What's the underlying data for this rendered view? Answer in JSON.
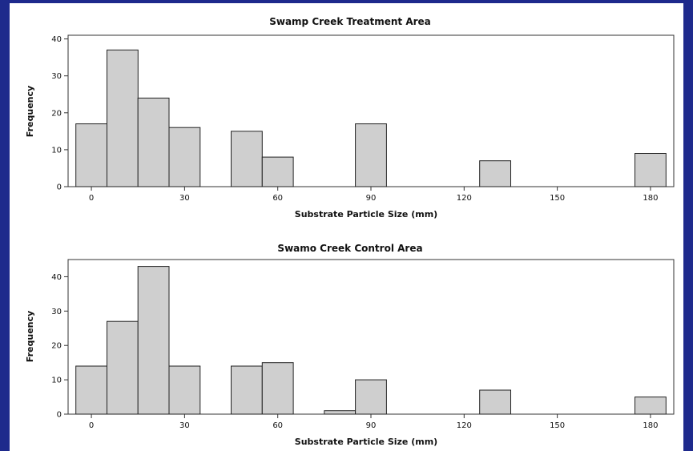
{
  "colors": {
    "background": "#1e2a8c",
    "bar_fill": "#cfcfcf",
    "bar_edge": "#222222"
  },
  "chart_data": [
    {
      "type": "bar",
      "title": "Swamp Creek Treatment Area",
      "xlabel": "Substrate Particle Size (mm)",
      "ylabel": "Frequency",
      "xlim": [
        -7.5,
        187.5
      ],
      "ylim": [
        0,
        41
      ],
      "xticks": [
        0,
        30,
        60,
        90,
        120,
        150,
        180
      ],
      "yticks": [
        0,
        10,
        20,
        30,
        40
      ],
      "bin_width": 10,
      "bins": [
        {
          "center": 0,
          "value": 17
        },
        {
          "center": 10,
          "value": 37
        },
        {
          "center": 20,
          "value": 24
        },
        {
          "center": 30,
          "value": 16
        },
        {
          "center": 40,
          "value": 0
        },
        {
          "center": 50,
          "value": 15
        },
        {
          "center": 60,
          "value": 8
        },
        {
          "center": 70,
          "value": 0
        },
        {
          "center": 80,
          "value": 0
        },
        {
          "center": 90,
          "value": 17
        },
        {
          "center": 100,
          "value": 0
        },
        {
          "center": 110,
          "value": 0
        },
        {
          "center": 120,
          "value": 0
        },
        {
          "center": 130,
          "value": 7
        },
        {
          "center": 140,
          "value": 0
        },
        {
          "center": 150,
          "value": 0
        },
        {
          "center": 160,
          "value": 0
        },
        {
          "center": 170,
          "value": 0
        },
        {
          "center": 180,
          "value": 9
        }
      ]
    },
    {
      "type": "bar",
      "title": "Swamo Creek Control Area",
      "xlabel": "Substrate Particle Size (mm)",
      "ylabel": "Frequency",
      "xlim": [
        -7.5,
        187.5
      ],
      "ylim": [
        0,
        45
      ],
      "xticks": [
        0,
        30,
        60,
        90,
        120,
        150,
        180
      ],
      "yticks": [
        0,
        10,
        20,
        30,
        40
      ],
      "bin_width": 10,
      "bins": [
        {
          "center": 0,
          "value": 14
        },
        {
          "center": 10,
          "value": 27
        },
        {
          "center": 20,
          "value": 43
        },
        {
          "center": 30,
          "value": 14
        },
        {
          "center": 40,
          "value": 0
        },
        {
          "center": 50,
          "value": 14
        },
        {
          "center": 60,
          "value": 15
        },
        {
          "center": 70,
          "value": 0
        },
        {
          "center": 80,
          "value": 1
        },
        {
          "center": 90,
          "value": 10
        },
        {
          "center": 100,
          "value": 0
        },
        {
          "center": 110,
          "value": 0
        },
        {
          "center": 120,
          "value": 0
        },
        {
          "center": 130,
          "value": 7
        },
        {
          "center": 140,
          "value": 0
        },
        {
          "center": 150,
          "value": 0
        },
        {
          "center": 160,
          "value": 0
        },
        {
          "center": 170,
          "value": 0
        },
        {
          "center": 180,
          "value": 5
        }
      ]
    }
  ]
}
